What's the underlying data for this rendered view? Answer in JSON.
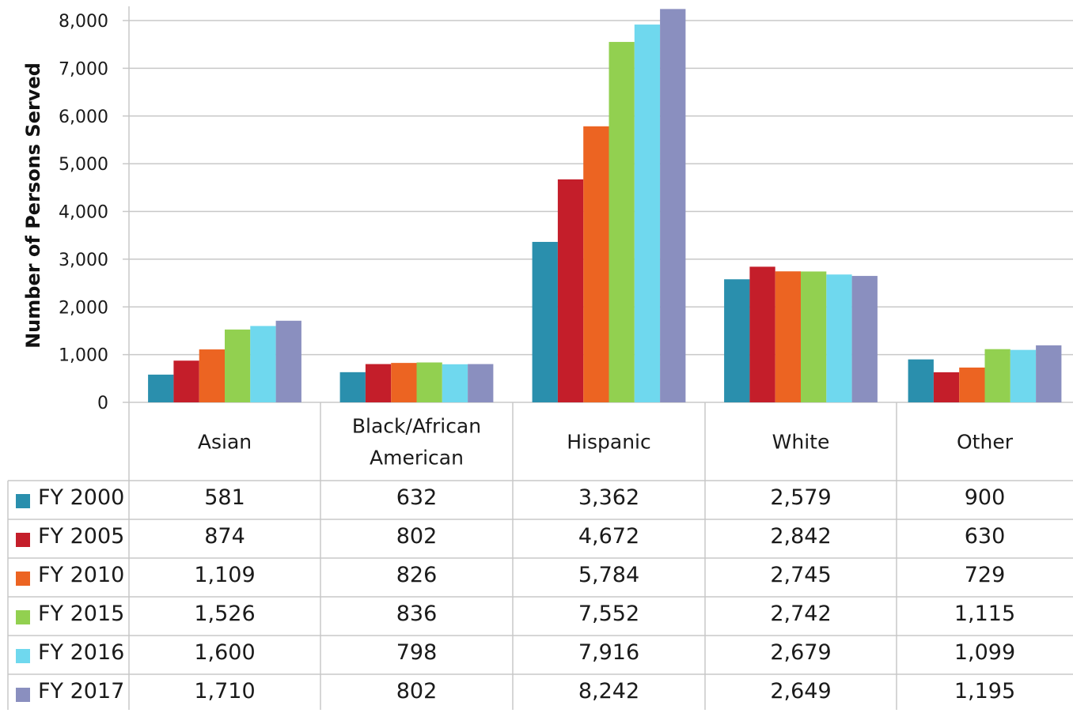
{
  "chart_data": {
    "type": "bar",
    "ylabel": "Number of Persons Served",
    "xlabel": "",
    "ylim": [
      0,
      8000
    ],
    "yticks": [
      0,
      1000,
      2000,
      3000,
      4000,
      5000,
      6000,
      7000,
      8000
    ],
    "ytick_labels": [
      "0",
      "1,000",
      "2,000",
      "3,000",
      "4,000",
      "5,000",
      "6,000",
      "7,000",
      "8,000"
    ],
    "grid": true,
    "legend_placement": "data table below chart",
    "categories": [
      "Asian",
      "Black/African American",
      "Hispanic",
      "White",
      "Other"
    ],
    "category_label_lines": [
      [
        "Asian"
      ],
      [
        "Black/African",
        "American"
      ],
      [
        "Hispanic"
      ],
      [
        "White"
      ],
      [
        "Other"
      ]
    ],
    "series": [
      {
        "name": "FY 2000",
        "color": "#2a8fad",
        "values": [
          581,
          632,
          3362,
          2579,
          900
        ],
        "labels": [
          "581",
          "632",
          "3,362",
          "2,579",
          "900"
        ]
      },
      {
        "name": "FY 2005",
        "color": "#c41e2a",
        "values": [
          874,
          802,
          4672,
          2842,
          630
        ],
        "labels": [
          "874",
          "802",
          "4,672",
          "2,842",
          "630"
        ]
      },
      {
        "name": "FY 2010",
        "color": "#ec6422",
        "values": [
          1109,
          826,
          5784,
          2745,
          729
        ],
        "labels": [
          "1,109",
          "826",
          "5,784",
          "2,745",
          "729"
        ]
      },
      {
        "name": "FY 2015",
        "color": "#92d050",
        "values": [
          1526,
          836,
          7552,
          2742,
          1115
        ],
        "labels": [
          "1,526",
          "836",
          "7,552",
          "2,742",
          "1,115"
        ]
      },
      {
        "name": "FY 2016",
        "color": "#6fd8ee",
        "values": [
          1600,
          798,
          7916,
          2679,
          1099
        ],
        "labels": [
          "1,600",
          "798",
          "7,916",
          "2,679",
          "1,099"
        ]
      },
      {
        "name": "FY 2017",
        "color": "#8a8fbf",
        "values": [
          1710,
          802,
          8242,
          2649,
          1195
        ],
        "labels": [
          "1,710",
          "802",
          "8,242",
          "2,649",
          "1,195"
        ]
      }
    ]
  }
}
